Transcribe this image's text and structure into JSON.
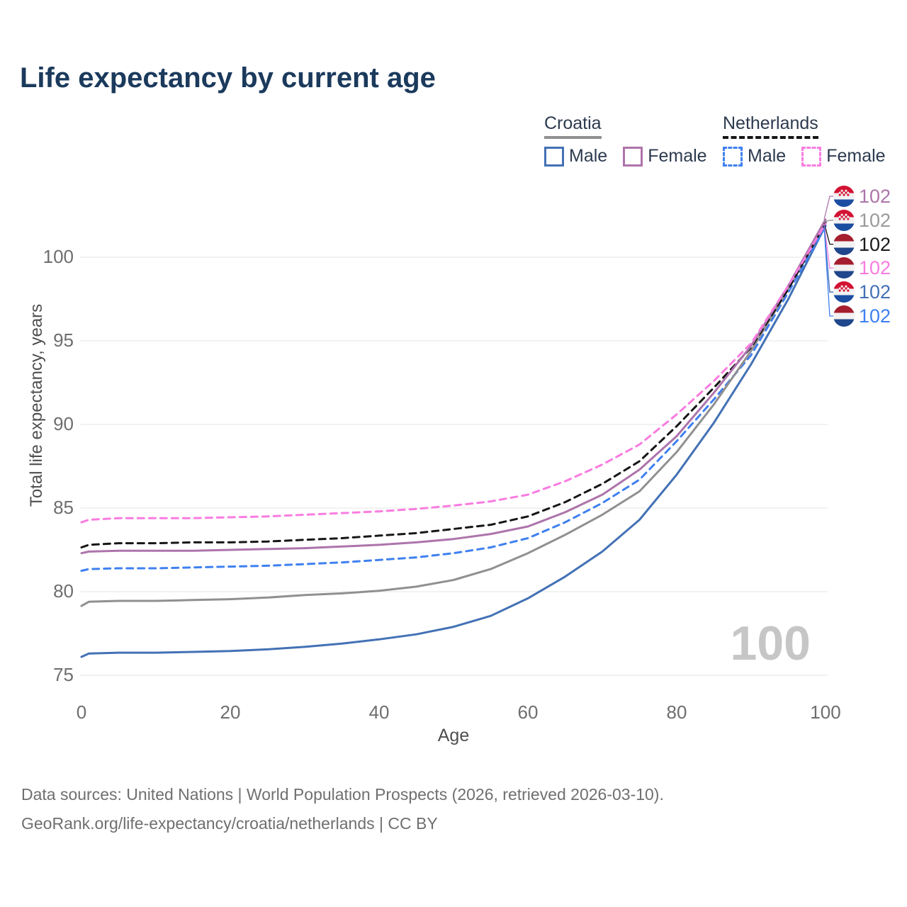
{
  "title": "Life expectancy by current age",
  "legend": {
    "groups": [
      {
        "country": "Croatia",
        "line_style": "solid",
        "line_color": "#909090",
        "items": [
          {
            "label": "Male",
            "series": "hr_male"
          },
          {
            "label": "Female",
            "series": "hr_female"
          }
        ]
      },
      {
        "country": "Netherlands",
        "line_style": "dashed",
        "line_color": "#161616",
        "items": [
          {
            "label": "Male",
            "series": "nl_male"
          },
          {
            "label": "Female",
            "series": "nl_female"
          }
        ]
      }
    ]
  },
  "chart_data": {
    "type": "line",
    "title": "Life expectancy by current age",
    "xlabel": "Age",
    "ylabel": "Total life expectancy, years",
    "xlim": [
      0,
      100
    ],
    "ylim": [
      75,
      102.5
    ],
    "x_ticks": [
      0,
      20,
      40,
      60,
      80,
      100
    ],
    "y_ticks": [
      75,
      80,
      85,
      90,
      95,
      100
    ],
    "grid": "horizontal",
    "legend_position": "top-right",
    "x": [
      0,
      1,
      5,
      10,
      15,
      20,
      25,
      30,
      35,
      40,
      45,
      50,
      55,
      60,
      65,
      70,
      75,
      80,
      85,
      90,
      95,
      100
    ],
    "series": [
      {
        "key": "hr_male",
        "name": "Croatia Male",
        "color": "#4371b5",
        "dash": false,
        "values": [
          76.1,
          76.3,
          76.35,
          76.35,
          76.4,
          76.45,
          76.55,
          76.7,
          76.9,
          77.15,
          77.45,
          77.9,
          78.55,
          79.6,
          80.9,
          82.4,
          84.3,
          87.0,
          90.1,
          93.6,
          97.5,
          101.9
        ]
      },
      {
        "key": "nl_male",
        "name": "Netherlands Male",
        "color": "#3f80f0",
        "dash": true,
        "values": [
          81.25,
          81.35,
          81.4,
          81.4,
          81.45,
          81.5,
          81.55,
          81.65,
          81.75,
          81.9,
          82.05,
          82.3,
          82.65,
          83.2,
          84.15,
          85.3,
          86.7,
          89.0,
          91.5,
          94.15,
          97.9,
          101.85
        ]
      },
      {
        "key": "hr_both",
        "name": "Croatia Both sexes",
        "color": "#909090",
        "dash": false,
        "values": [
          79.15,
          79.4,
          79.45,
          79.45,
          79.5,
          79.55,
          79.65,
          79.8,
          79.9,
          80.05,
          80.3,
          80.7,
          81.35,
          82.3,
          83.4,
          84.6,
          86.0,
          88.35,
          91.2,
          94.4,
          98.1,
          102.1
        ]
      },
      {
        "key": "nl_both",
        "name": "Netherlands Both sexes",
        "color": "#161616",
        "dash": true,
        "values": [
          82.65,
          82.8,
          82.9,
          82.9,
          82.95,
          82.95,
          83.0,
          83.1,
          83.2,
          83.35,
          83.5,
          83.75,
          84.0,
          84.5,
          85.35,
          86.45,
          87.8,
          89.9,
          92.2,
          94.6,
          98.1,
          102.05
        ]
      },
      {
        "key": "hr_female",
        "name": "Croatia Female",
        "color": "#ad74ab",
        "dash": false,
        "values": [
          82.3,
          82.4,
          82.45,
          82.45,
          82.45,
          82.5,
          82.55,
          82.6,
          82.7,
          82.8,
          82.95,
          83.15,
          83.45,
          83.9,
          84.75,
          85.8,
          87.3,
          89.3,
          91.9,
          94.7,
          98.3,
          102.25
        ]
      },
      {
        "key": "nl_female",
        "name": "Netherlands Female",
        "color": "#f97ce0",
        "dash": true,
        "values": [
          84.15,
          84.3,
          84.4,
          84.4,
          84.4,
          84.45,
          84.5,
          84.6,
          84.7,
          84.8,
          84.95,
          85.15,
          85.4,
          85.8,
          86.6,
          87.6,
          88.8,
          90.6,
          92.6,
          94.85,
          98.3,
          102.0
        ]
      }
    ]
  },
  "end_labels": [
    {
      "value": "102",
      "flag": "croatia",
      "series": "hr_female",
      "color": "#ad74ab"
    },
    {
      "value": "102",
      "flag": "croatia",
      "series": "hr_both",
      "color": "#9a9a9a"
    },
    {
      "value": "102",
      "flag": "netherlands",
      "series": "nl_both",
      "color": "#1a1a1a"
    },
    {
      "value": "102",
      "flag": "netherlands",
      "series": "nl_female",
      "color": "#f97ce0"
    },
    {
      "value": "102",
      "flag": "croatia",
      "series": "hr_male",
      "color": "#4371b5"
    },
    {
      "value": "102",
      "flag": "netherlands",
      "series": "nl_male",
      "color": "#3f80f0"
    }
  ],
  "watermark": "100",
  "footer": {
    "line1": "Data sources: United Nations | World Population Prospects (2026, retrieved 2026-03-10).",
    "line2": "GeoRank.org/life-expectancy/croatia/netherlands | CC BY"
  },
  "colors": {
    "title": "#1b3a5c",
    "axis_text": "#6e6e6e",
    "gridline": "#e9e9e9",
    "watermark": "#c6c6c6",
    "croatia_flag": {
      "red": "#d31233",
      "white": "#f2f2f2",
      "blue": "#1b4da1"
    },
    "netherlands_flag": {
      "red": "#a51e2f",
      "white": "#f2f2f2",
      "blue": "#20468b"
    }
  }
}
